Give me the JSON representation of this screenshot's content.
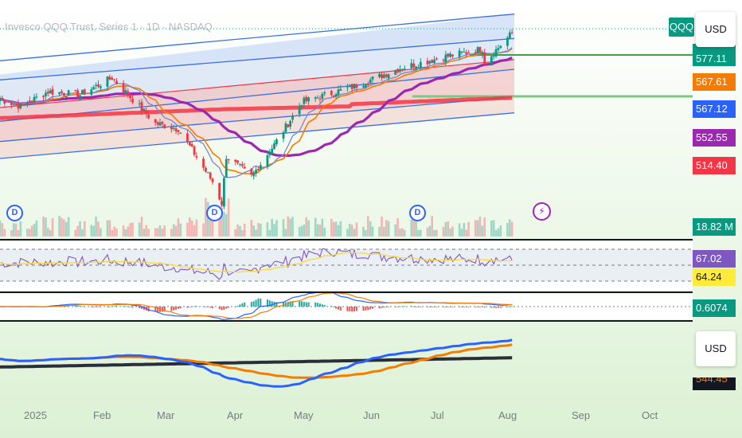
{
  "header": {
    "title": "Invesco QQQ Trust, Series 1 · 1D · NASDAQ",
    "symbol_badge": "QQQ"
  },
  "currency_buttons": [
    "USD",
    "USD"
  ],
  "price_scale_tags": [
    {
      "label": "567.61",
      "color": "#f57c00"
    },
    {
      "label": "567.12",
      "color": "#2962ff"
    },
    {
      "label": "552.55",
      "color": "#9c27b0"
    },
    {
      "label": "514.40",
      "color": "#f23645"
    }
  ],
  "partial_tags": {
    "top_price": "577.11",
    "bottom_price": "544.45"
  },
  "volume_tag": {
    "label": "18.82 M",
    "color": "#089981"
  },
  "rsi_tags": [
    {
      "label": "67.02",
      "color": "#7e57c2"
    },
    {
      "label": "64.24",
      "color": "#ffeb3b",
      "text_color": "#131722"
    }
  ],
  "macd_tag": {
    "label": "0.6074",
    "color": "#089981"
  },
  "event_badges": {
    "dividend": "D",
    "earnings_icon": "lightning-icon"
  },
  "x_axis_months": [
    "2025",
    "Feb",
    "Mar",
    "Apr",
    "May",
    "Jun",
    "Jul",
    "Aug",
    "Sep",
    "Oct"
  ],
  "chart_data": [
    {
      "type": "candlestick",
      "title": "Invesco QQQ Trust, Series 1 · 1D · NASDAQ",
      "x_range": [
        "2025-01-01",
        "2025-10-31"
      ],
      "ylim": [
        405,
        600
      ],
      "price_path": [
        {
          "date": "2025-01-01",
          "close": 518
        },
        {
          "date": "2025-01-10",
          "close": 511
        },
        {
          "date": "2025-01-22",
          "close": 525
        },
        {
          "date": "2025-02-05",
          "close": 522
        },
        {
          "date": "2025-02-19",
          "close": 538
        },
        {
          "date": "2025-03-10",
          "close": 495
        },
        {
          "date": "2025-03-20",
          "close": 490
        },
        {
          "date": "2025-04-04",
          "close": 440
        },
        {
          "date": "2025-04-08",
          "close": 420
        },
        {
          "date": "2025-04-10",
          "close": 464
        },
        {
          "date": "2025-04-21",
          "close": 445
        },
        {
          "date": "2025-05-01",
          "close": 475
        },
        {
          "date": "2025-05-13",
          "close": 515
        },
        {
          "date": "2025-06-05",
          "close": 530
        },
        {
          "date": "2025-06-25",
          "close": 547
        },
        {
          "date": "2025-07-15",
          "close": 558
        },
        {
          "date": "2025-07-31",
          "close": 565
        },
        {
          "date": "2025-08-01",
          "close": 553
        },
        {
          "date": "2025-08-13",
          "close": 580
        }
      ],
      "moving_averages": [
        {
          "line": "orange",
          "last": 567.61,
          "color": "#f57c00"
        },
        {
          "line": "blue",
          "last": 567.12,
          "color": "#2962ff"
        },
        {
          "line": "purple",
          "last": 552.55,
          "color": "#9c27b0"
        },
        {
          "line": "red",
          "last": 514.4,
          "color": "#f23645"
        }
      ],
      "volume_last": "18.82 M",
      "grid": true
    },
    {
      "type": "line",
      "pane": "RSI",
      "series": [
        {
          "line": "purple",
          "last": 67.02,
          "color": "#7e57c2"
        },
        {
          "line": "yellow",
          "last": 64.24,
          "color": "#ffeb3b"
        }
      ]
    },
    {
      "type": "line",
      "pane": "MACD",
      "last": 0.6074
    }
  ]
}
